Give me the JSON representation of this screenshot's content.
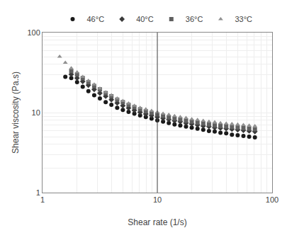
{
  "chart_data": {
    "type": "scatter",
    "x_label": "Shear rate (1/s)",
    "y_label": "Shear viscosity (Pa.s)",
    "log": true,
    "grid": true,
    "legend": "top",
    "xlim": [
      1.0,
      100.0
    ],
    "ylim": [
      1.0,
      100.0
    ],
    "xticks": [
      1,
      10,
      100
    ],
    "yticks": [
      1,
      10,
      100
    ],
    "vline": {
      "x": 10.0,
      "color": "#444444"
    },
    "series": [
      {
        "name": "46°C",
        "marker": "circle",
        "color": "#1a1a1a",
        "x": [
          1.58,
          1.78,
          2.0,
          2.24,
          2.51,
          2.82,
          3.16,
          3.55,
          3.98,
          4.47,
          5.01,
          5.62,
          6.31,
          7.08,
          7.94,
          8.91,
          10.0,
          11.22,
          12.59,
          14.13,
          15.85,
          17.78,
          19.95,
          22.39,
          25.12,
          28.18,
          31.62,
          35.48,
          39.81,
          44.67,
          50.12,
          56.23,
          63.1,
          70.79
        ],
        "values": [
          28.0,
          27.0,
          24.0,
          21.0,
          18.5,
          16.5,
          15.0,
          13.5,
          12.5,
          11.5,
          10.8,
          10.2,
          9.7,
          9.2,
          8.8,
          8.4,
          8.0,
          7.7,
          7.4,
          7.1,
          6.9,
          6.7,
          6.5,
          6.3,
          6.1,
          5.9,
          5.8,
          5.6,
          5.5,
          5.3,
          5.2,
          5.1,
          5.0,
          4.9
        ]
      },
      {
        "name": "40°C",
        "marker": "diamond",
        "color": "#3a3a3a",
        "x": [
          1.78,
          2.0,
          2.24,
          2.51,
          2.82,
          3.16,
          3.55,
          3.98,
          4.47,
          5.01,
          5.62,
          6.31,
          7.08,
          7.94,
          8.91,
          10.0,
          11.22,
          12.59,
          14.13,
          15.85,
          17.78,
          19.95,
          22.39,
          25.12,
          28.18,
          31.62,
          35.48,
          39.81,
          44.67,
          50.12,
          56.23,
          63.1,
          70.79
        ],
        "values": [
          30.0,
          27.0,
          24.5,
          22.0,
          19.5,
          17.5,
          16.0,
          14.5,
          13.2,
          12.2,
          11.4,
          10.7,
          10.1,
          9.6,
          9.2,
          8.8,
          8.5,
          8.2,
          7.9,
          7.7,
          7.4,
          7.2,
          7.0,
          6.8,
          6.7,
          6.5,
          6.4,
          6.3,
          6.2,
          6.1,
          6.0,
          5.9,
          5.8
        ]
      },
      {
        "name": "36°C",
        "marker": "square",
        "color": "#606060",
        "x": [
          1.78,
          2.0,
          2.24,
          2.51,
          2.82,
          3.16,
          3.55,
          3.98,
          4.47,
          5.01,
          5.62,
          6.31,
          7.08,
          7.94,
          8.91,
          10.0,
          11.22,
          12.59,
          14.13,
          15.85,
          17.78,
          19.95,
          22.39,
          25.12,
          28.18,
          31.62,
          35.48,
          39.81,
          44.67,
          50.12,
          56.23,
          63.1,
          70.79
        ],
        "values": [
          33.0,
          30.0,
          27.0,
          24.0,
          21.5,
          19.5,
          17.5,
          16.0,
          14.5,
          13.5,
          12.5,
          11.7,
          11.0,
          10.4,
          9.9,
          9.5,
          9.1,
          8.7,
          8.4,
          8.2,
          7.9,
          7.7,
          7.5,
          7.3,
          7.1,
          6.9,
          6.8,
          6.7,
          6.6,
          6.5,
          6.4,
          6.3,
          6.2
        ]
      },
      {
        "name": "33°C",
        "marker": "triangle-up",
        "color": "#909090",
        "x": [
          1.41,
          1.58,
          1.78,
          2.0,
          2.24,
          2.51,
          2.82,
          3.16,
          3.55,
          3.98,
          4.47,
          5.01,
          5.62,
          6.31,
          7.08,
          7.94,
          8.91,
          10.0,
          11.22,
          12.59,
          14.13,
          15.85,
          17.78,
          19.95,
          22.39,
          25.12,
          28.18,
          31.62,
          35.48,
          39.81,
          44.67,
          50.12,
          56.23,
          63.1,
          70.79
        ],
        "values": [
          50.0,
          42.0,
          36.0,
          32.0,
          28.0,
          25.0,
          22.5,
          20.0,
          18.0,
          16.5,
          15.0,
          14.0,
          13.0,
          12.2,
          11.5,
          11.0,
          10.5,
          10.1,
          9.7,
          9.4,
          9.1,
          8.8,
          8.6,
          8.3,
          8.1,
          7.9,
          7.7,
          7.6,
          7.4,
          7.3,
          7.2,
          7.1,
          7.0,
          6.9,
          6.8
        ]
      }
    ]
  }
}
